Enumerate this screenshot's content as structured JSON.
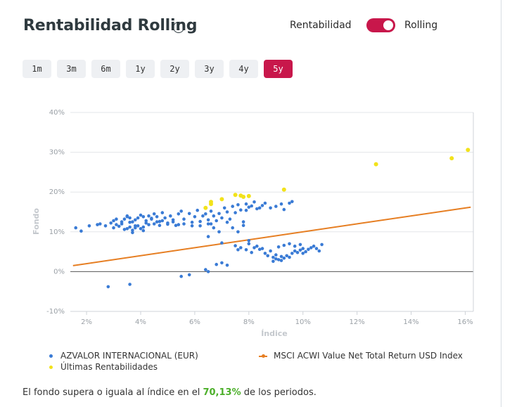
{
  "header": {
    "title": "Rentabilidad Rolling",
    "info_icon": "info-icon"
  },
  "toggle": {
    "left_label": "Rentabilidad",
    "right_label": "Rolling",
    "state": "Rolling",
    "accent": "#c8174b"
  },
  "periods": {
    "items": [
      "1m",
      "3m",
      "6m",
      "1y",
      "2y",
      "3y",
      "4y",
      "5y"
    ],
    "active": "5y"
  },
  "legend": {
    "fund": "AZVALOR INTERNACIONAL (EUR)",
    "latest": "Últimas Rentabilidades",
    "index": "MSCI ACWI Value Net Total Return USD Index"
  },
  "footer": {
    "before": "El fondo supera o iguala al índice en el ",
    "pct": "70,13%",
    "after": " de los periodos."
  },
  "chart_data": {
    "type": "scatter",
    "xlabel": "Índice",
    "ylabel": "Fondo",
    "xlim": [
      1.4,
      16.3
    ],
    "ylim": [
      -10,
      40
    ],
    "xticks": [
      "2%",
      "4%",
      "6%",
      "8%",
      "10%",
      "12%",
      "14%",
      "16%"
    ],
    "xtick_values": [
      2,
      4,
      6,
      8,
      10,
      12,
      14,
      16
    ],
    "yticks": [
      "-10%",
      "0%",
      "10%",
      "20%",
      "30%",
      "40%"
    ],
    "ytick_values": [
      -10,
      0,
      10,
      20,
      30,
      40
    ],
    "grid": "horizontal",
    "colors": {
      "fund": "#3a7bd5",
      "latest": "#f2e21b",
      "index": "#e67e22"
    },
    "series": [
      {
        "name": "AZVALOR INTERNACIONAL (EUR)",
        "kind": "scatter",
        "points": [
          [
            1.6,
            11
          ],
          [
            1.8,
            10.2
          ],
          [
            2.1,
            11.5
          ],
          [
            2.4,
            11.8
          ],
          [
            2.7,
            11.5
          ],
          [
            2.9,
            12.2
          ],
          [
            3.0,
            12.8
          ],
          [
            3.1,
            11.8
          ],
          [
            3.2,
            11.4
          ],
          [
            3.3,
            12.5
          ],
          [
            3.4,
            13.2
          ],
          [
            3.5,
            14.0
          ],
          [
            3.6,
            13.5
          ],
          [
            3.7,
            12.5
          ],
          [
            3.8,
            11.5
          ],
          [
            3.9,
            13.5
          ],
          [
            4.0,
            14.2
          ],
          [
            4.1,
            13.8
          ],
          [
            4.2,
            12.8
          ],
          [
            4.3,
            14.0
          ],
          [
            4.4,
            13.2
          ],
          [
            4.5,
            14.5
          ],
          [
            4.6,
            13.8
          ],
          [
            4.7,
            12.6
          ],
          [
            4.8,
            14.8
          ],
          [
            4.9,
            13.5
          ],
          [
            5.0,
            12.2
          ],
          [
            5.1,
            14.0
          ],
          [
            5.2,
            13.0
          ],
          [
            5.3,
            11.6
          ],
          [
            5.4,
            14.5
          ],
          [
            5.5,
            15.2
          ],
          [
            5.6,
            13.2
          ],
          [
            5.8,
            14.6
          ],
          [
            5.9,
            12.4
          ],
          [
            6.0,
            13.8
          ],
          [
            6.1,
            15.4
          ],
          [
            6.2,
            12.6
          ],
          [
            6.4,
            14.5
          ],
          [
            6.5,
            12.0
          ],
          [
            3.5,
            10.8
          ],
          [
            3.6,
            11.2
          ],
          [
            3.7,
            10.4
          ],
          [
            3.8,
            11.0
          ],
          [
            3.9,
            11.5
          ],
          [
            4.0,
            10.8
          ],
          [
            4.1,
            11.2
          ],
          [
            4.3,
            11.8
          ],
          [
            4.5,
            12.0
          ],
          [
            4.7,
            11.6
          ],
          [
            3.6,
            12.4
          ],
          [
            3.8,
            13.0
          ],
          [
            4.2,
            12.2
          ],
          [
            4.4,
            13.4
          ],
          [
            4.8,
            12.8
          ],
          [
            5.0,
            11.9
          ],
          [
            5.2,
            12.5
          ],
          [
            5.6,
            12.0
          ],
          [
            5.9,
            11.5
          ],
          [
            6.2,
            11.5
          ],
          [
            3.1,
            13.2
          ],
          [
            3.3,
            12.0
          ],
          [
            3.5,
            13.8
          ],
          [
            4.6,
            12.5
          ],
          [
            5.4,
            11.8
          ],
          [
            2.5,
            12.0
          ],
          [
            3.0,
            11.0
          ],
          [
            3.4,
            10.6
          ],
          [
            3.7,
            9.8
          ],
          [
            4.1,
            10.3
          ],
          [
            6.3,
            14.0
          ],
          [
            6.5,
            13.0
          ],
          [
            6.6,
            15.2
          ],
          [
            6.7,
            14.0
          ],
          [
            6.8,
            12.8
          ],
          [
            6.9,
            14.6
          ],
          [
            7.0,
            13.5
          ],
          [
            7.1,
            16.0
          ],
          [
            7.2,
            15.0
          ],
          [
            7.3,
            13.2
          ],
          [
            7.4,
            16.4
          ],
          [
            7.5,
            14.8
          ],
          [
            7.6,
            16.8
          ],
          [
            7.7,
            15.5
          ],
          [
            7.8,
            12.5
          ],
          [
            7.9,
            17.0
          ],
          [
            8.0,
            16.2
          ],
          [
            8.1,
            16.5
          ],
          [
            8.2,
            17.5
          ],
          [
            8.3,
            15.8
          ],
          [
            6.6,
            12.0
          ],
          [
            6.7,
            11.0
          ],
          [
            6.9,
            10.0
          ],
          [
            7.2,
            12.4
          ],
          [
            7.4,
            11.0
          ],
          [
            7.6,
            10.0
          ],
          [
            7.8,
            11.6
          ],
          [
            6.5,
            8.8
          ],
          [
            7.0,
            7.2
          ],
          [
            7.5,
            6.5
          ],
          [
            8.5,
            16.6
          ],
          [
            8.6,
            17.2
          ],
          [
            8.8,
            16.0
          ],
          [
            9.0,
            16.4
          ],
          [
            9.3,
            15.6
          ],
          [
            9.5,
            17.2
          ],
          [
            9.6,
            17.6
          ],
          [
            9.2,
            17.0
          ],
          [
            8.4,
            16.0
          ],
          [
            7.9,
            15.4
          ],
          [
            7.9,
            5.5
          ],
          [
            8.1,
            4.8
          ],
          [
            8.2,
            6.0
          ],
          [
            8.4,
            5.6
          ],
          [
            8.6,
            4.6
          ],
          [
            8.8,
            5.2
          ],
          [
            8.9,
            3.6
          ],
          [
            9.0,
            4.2
          ],
          [
            9.1,
            3.0
          ],
          [
            9.2,
            2.8
          ],
          [
            9.3,
            3.4
          ],
          [
            9.4,
            4.0
          ],
          [
            9.5,
            3.6
          ],
          [
            9.6,
            4.6
          ],
          [
            9.7,
            5.2
          ],
          [
            9.8,
            4.8
          ],
          [
            9.9,
            5.4
          ],
          [
            10.0,
            4.6
          ],
          [
            10.1,
            5.0
          ],
          [
            10.2,
            5.6
          ],
          [
            10.3,
            6.0
          ],
          [
            10.4,
            6.4
          ],
          [
            10.5,
            5.8
          ],
          [
            10.6,
            5.2
          ],
          [
            10.7,
            6.8
          ],
          [
            9.1,
            6.2
          ],
          [
            9.3,
            6.6
          ],
          [
            9.5,
            7.0
          ],
          [
            9.7,
            6.4
          ],
          [
            9.9,
            6.8
          ],
          [
            8.9,
            2.6
          ],
          [
            9.0,
            3.2
          ],
          [
            9.2,
            3.8
          ],
          [
            8.7,
            4.0
          ],
          [
            8.5,
            5.8
          ],
          [
            8.3,
            6.4
          ],
          [
            8.0,
            7.0
          ],
          [
            7.7,
            6.0
          ],
          [
            7.6,
            5.5
          ],
          [
            10.0,
            5.8
          ],
          [
            6.4,
            0.5
          ],
          [
            6.5,
            0.0
          ],
          [
            6.8,
            1.8
          ],
          [
            7.0,
            2.2
          ],
          [
            7.2,
            1.6
          ],
          [
            5.5,
            -1.2
          ],
          [
            5.8,
            -0.8
          ],
          [
            2.8,
            -3.8
          ],
          [
            3.6,
            -3.2
          ],
          [
            8.0,
            7.8
          ]
        ]
      },
      {
        "name": "Últimas Rentabilidades",
        "kind": "scatter",
        "points": [
          [
            6.4,
            16.0
          ],
          [
            6.6,
            17.0
          ],
          [
            6.6,
            17.5
          ],
          [
            7.0,
            18.2
          ],
          [
            7.5,
            19.3
          ],
          [
            7.7,
            19.1
          ],
          [
            7.8,
            18.8
          ],
          [
            8.0,
            19.0
          ],
          [
            9.3,
            20.6
          ],
          [
            12.7,
            27.0
          ],
          [
            15.5,
            28.5
          ],
          [
            16.1,
            30.6
          ]
        ]
      },
      {
        "name": "MSCI ACWI Value Net Total Return USD Index",
        "kind": "line",
        "points": [
          [
            1.5,
            1.5
          ],
          [
            16.2,
            16.2
          ]
        ]
      }
    ]
  }
}
